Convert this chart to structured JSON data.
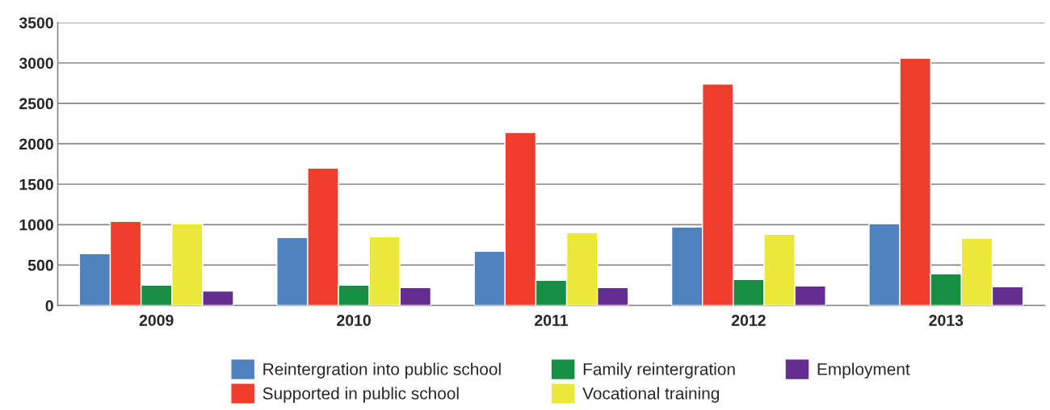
{
  "chart_data": {
    "type": "bar",
    "categories": [
      "2009",
      "2010",
      "2011",
      "2012",
      "2013"
    ],
    "series": [
      {
        "name": "Reintergration into public school",
        "color": "#4f81bd",
        "values": [
          640,
          840,
          670,
          970,
          1010
        ]
      },
      {
        "name": "Supported in public school",
        "color": "#ef3e2b",
        "values": [
          1040,
          1700,
          2140,
          2740,
          3060
        ]
      },
      {
        "name": "Family reintergration",
        "color": "#168f45",
        "values": [
          250,
          250,
          310,
          320,
          390
        ]
      },
      {
        "name": "Vocational training",
        "color": "#ebe83a",
        "values": [
          1010,
          850,
          900,
          880,
          830
        ]
      },
      {
        "name": "Employment",
        "color": "#652d90",
        "values": [
          180,
          220,
          220,
          240,
          230
        ]
      }
    ],
    "ylim": [
      0,
      3500
    ],
    "yticks": [
      0,
      500,
      1000,
      1500,
      2000,
      2500,
      3000,
      3500
    ],
    "grid": "y",
    "legend": "bottom"
  }
}
